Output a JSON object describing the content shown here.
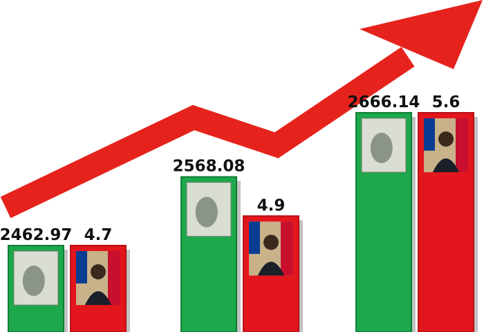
{
  "chart_data": {
    "type": "bar",
    "series": [
      {
        "color": "#1ca84b",
        "values": [
          2462.97,
          2568.08,
          2666.14
        ]
      },
      {
        "color": "#e3161d",
        "values": [
          4.7,
          4.9,
          5.6
        ]
      }
    ]
  }
}
